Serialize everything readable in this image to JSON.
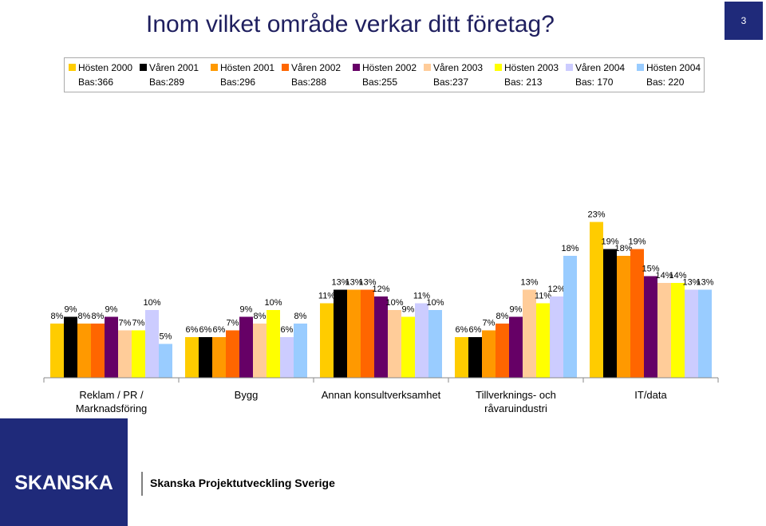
{
  "chart_data": {
    "type": "bar",
    "title": "Inom vilket område verkar ditt företag?",
    "categories": [
      "Reklam / PR / Marknadsföring",
      "Bygg",
      "Annan konsultverksamhet",
      "Tillverknings- och råvaruindustri",
      "IT/data"
    ],
    "series": [
      {
        "name": "Hösten 2000",
        "base": "Bas:366",
        "color": "#ffcc00",
        "values": [
          8,
          6,
          11,
          6,
          23
        ],
        "value_labels": [
          "8%",
          "6%",
          "11%",
          "6%",
          "23%"
        ]
      },
      {
        "name": "Våren 2001",
        "base": "Bas:289",
        "color": "#000000",
        "values": [
          9,
          6,
          13,
          6,
          19
        ],
        "value_labels": [
          "9%",
          "6%",
          "13%",
          "6%",
          "19%"
        ]
      },
      {
        "name": "Hösten 2001",
        "base": "Bas:296",
        "color": "#ff9900",
        "values": [
          8,
          6,
          13,
          7,
          18
        ],
        "value_labels": [
          "8%",
          "6%",
          "13%",
          "7%",
          "18%"
        ]
      },
      {
        "name": "Våren 2002",
        "base": "Bas:288",
        "color": "#ff6600",
        "values": [
          8,
          7,
          13,
          8,
          19
        ],
        "value_labels": [
          "8%",
          "7%",
          "13%",
          "8%",
          "19%"
        ]
      },
      {
        "name": "Hösten 2002",
        "base": "Bas:255",
        "color": "#660066",
        "values": [
          9,
          9,
          12,
          9,
          15
        ],
        "value_labels": [
          "9%",
          "9%",
          "12%",
          "9%",
          "15%"
        ]
      },
      {
        "name": "Våren 2003",
        "base": "Bas:237",
        "color": "#ffcc99",
        "values": [
          7,
          8,
          10,
          13,
          14
        ],
        "value_labels": [
          "7%",
          "8%",
          "10%",
          "13%",
          "14%"
        ]
      },
      {
        "name": "Hösten 2003",
        "base": "Bas: 213",
        "color": "#ffff00",
        "values": [
          7,
          10,
          9,
          11,
          14
        ],
        "value_labels": [
          "7%",
          "10%",
          "9%",
          "11%",
          "14%"
        ]
      },
      {
        "name": "Våren 2004",
        "base": "Bas: 170",
        "color": "#ccccff",
        "values": [
          10,
          6,
          11,
          12,
          13
        ],
        "value_labels": [
          "10%",
          "6%",
          "11%",
          "12%",
          "13%"
        ]
      },
      {
        "name": "Hösten 2004",
        "base": "Bas: 220",
        "color": "#99ccff",
        "values": [
          5,
          8,
          10,
          18,
          13
        ],
        "value_labels": [
          "5%",
          "8%",
          "10%",
          "18%",
          "13%"
        ]
      }
    ]
  },
  "slide": {
    "page_number": "3",
    "logo": "SKANSKA",
    "footer": "Skanska Projektutveckling Sverige"
  }
}
